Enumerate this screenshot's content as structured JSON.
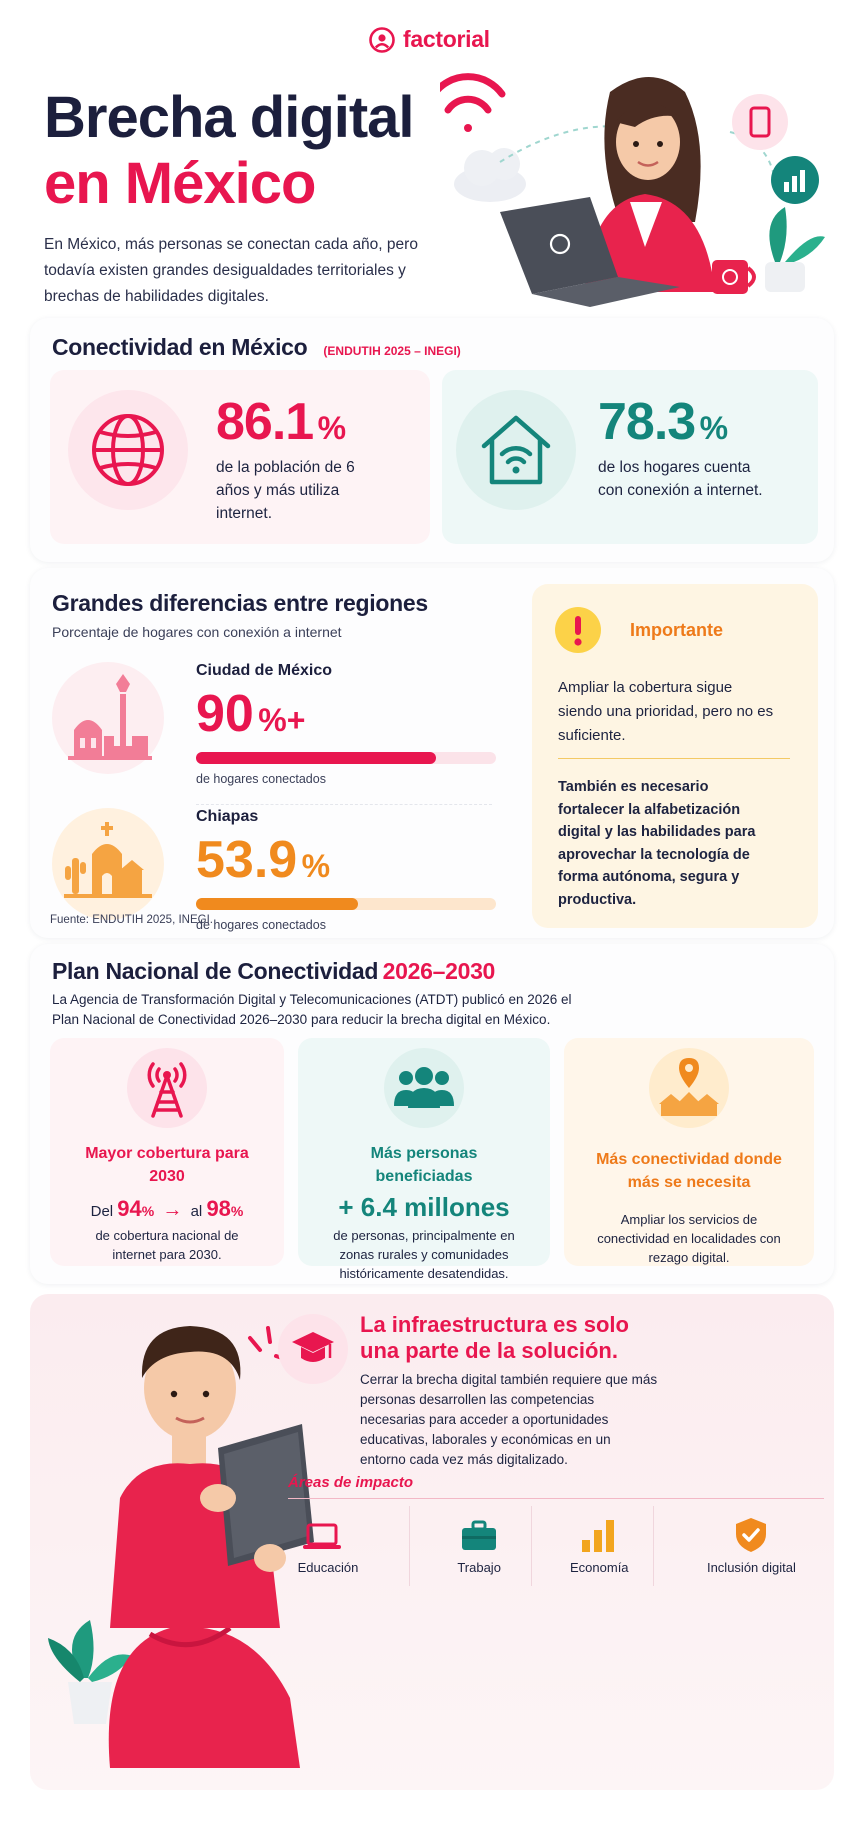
{
  "brand": {
    "name": "factorial",
    "color": "#e8164f"
  },
  "hero": {
    "title_line1": "Brecha digital",
    "title_line2": "en México",
    "intro": "En México, más personas se conectan cada año, pero todavía existen grandes desigualdades territoriales y brechas de habilidades digitales."
  },
  "connectivity": {
    "title": "Conectividad en México",
    "source_tag": "(ENDUTIH 2025 – INEGI)",
    "stats": [
      {
        "value": "86.1",
        "unit": "%",
        "text": "de la población de 6 años y más utiliza internet.",
        "icon": "globe-icon",
        "color": "#e8164f"
      },
      {
        "value": "78.3",
        "unit": "%",
        "text": "de los hogares cuenta con conexión a internet.",
        "icon": "home-wifi-icon",
        "color": "#14857b"
      }
    ]
  },
  "regions": {
    "title": "Grandes diferencias entre regiones",
    "subtitle": "Porcentaje de hogares con conexión a internet",
    "items": [
      {
        "name": "Ciudad de México",
        "value": "90",
        "unit": "%+",
        "percent": 90,
        "caption": "de hogares conectados",
        "color": "#e8164f",
        "track": "#fbe3e9",
        "icon": "angel-monument-icon"
      },
      {
        "name": "Chiapas",
        "value": "53.9",
        "unit": "%",
        "percent": 53.9,
        "caption": "de hogares conectados",
        "color": "#f08a1e",
        "track": "#fde6cd",
        "icon": "church-cactus-icon"
      }
    ],
    "source": "Fuente: ENDUTIH 2025, INEGI."
  },
  "important": {
    "title": "Importante",
    "text1": "Ampliar la cobertura sigue siendo una prioridad, pero no es suficiente.",
    "text2": "También es necesario fortalecer la alfabetización digital y las habilidades para aprovechar la tecnología de forma autónoma, segura y productiva."
  },
  "plan": {
    "title": "Plan Nacional de Conectividad",
    "title_years": "2026–2030",
    "description": "La Agencia de Transformación Digital y Telecomunicaciones (ATDT) publicó en 2026 el Plan Nacional de Conectividad 2026–2030 para reducir la brecha digital en México.",
    "cards": [
      {
        "title": "Mayor cobertura para 2030",
        "prefix": "Del",
        "from": "94",
        "from_unit": "%",
        "arrow": "→",
        "mid": "al",
        "to": "98",
        "to_unit": "%",
        "text": "de cobertura nacional de internet para 2030.",
        "icon": "antenna-icon",
        "color": "#e8164f"
      },
      {
        "title": "Más personas beneficiadas",
        "highlight": "+ 6.4 millones",
        "text": "de personas, principalmente en zonas rurales y comunidades históricamente desatendidas.",
        "icon": "people-group-icon",
        "color": "#14857b"
      },
      {
        "title": "Más conectividad donde más se necesita",
        "text": "Ampliar los servicios de conectividad en localidades con rezago digital.",
        "icon": "location-houses-icon",
        "color": "#f08a1e"
      }
    ]
  },
  "infra": {
    "title": "La infraestructura es solo una parte de la solución.",
    "text": "Cerrar la brecha digital también requiere que más personas desarrollen las competencias necesarias para acceder a oportunidades educativas, laborales y económicas en un entorno cada vez más digitalizado.",
    "areas_title": "Áreas de impacto",
    "areas": [
      {
        "label": "Educación",
        "icon": "laptop-icon",
        "color": "#e8164f"
      },
      {
        "label": "Trabajo",
        "icon": "briefcase-icon",
        "color": "#14857b"
      },
      {
        "label": "Economía",
        "icon": "bar-chart-icon",
        "color": "#f2a51e"
      },
      {
        "label": "Inclusión digital",
        "icon": "shield-check-icon",
        "color": "#f08a1e"
      }
    ]
  }
}
